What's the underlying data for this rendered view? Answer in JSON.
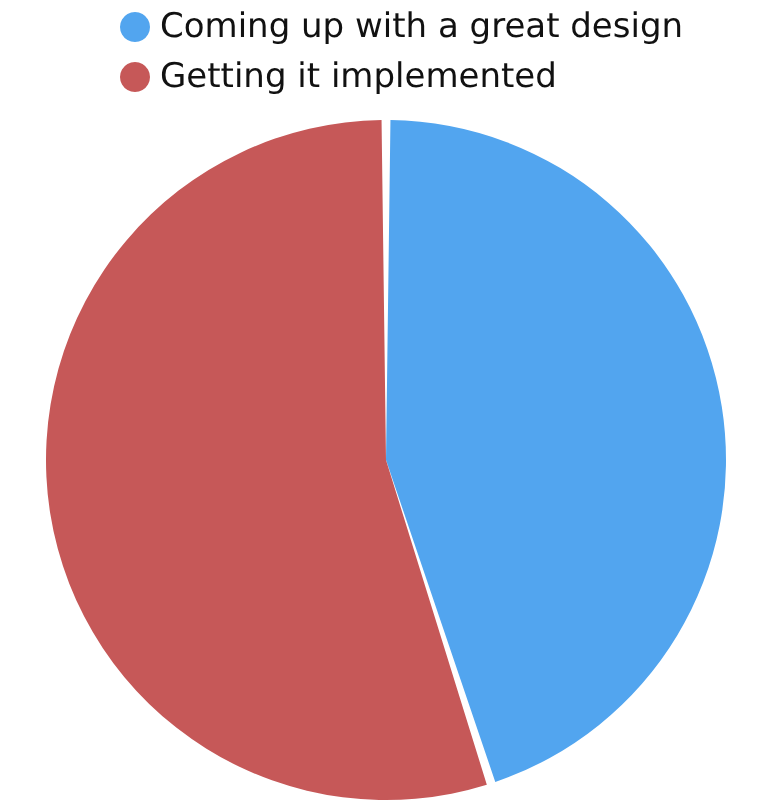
{
  "chart_data": {
    "type": "pie",
    "categories": [
      "Coming up with a great design",
      "Getting it implemented"
    ],
    "values": [
      45,
      55
    ],
    "colors": [
      "#52a5ef",
      "#c65858"
    ],
    "legend": "top"
  }
}
